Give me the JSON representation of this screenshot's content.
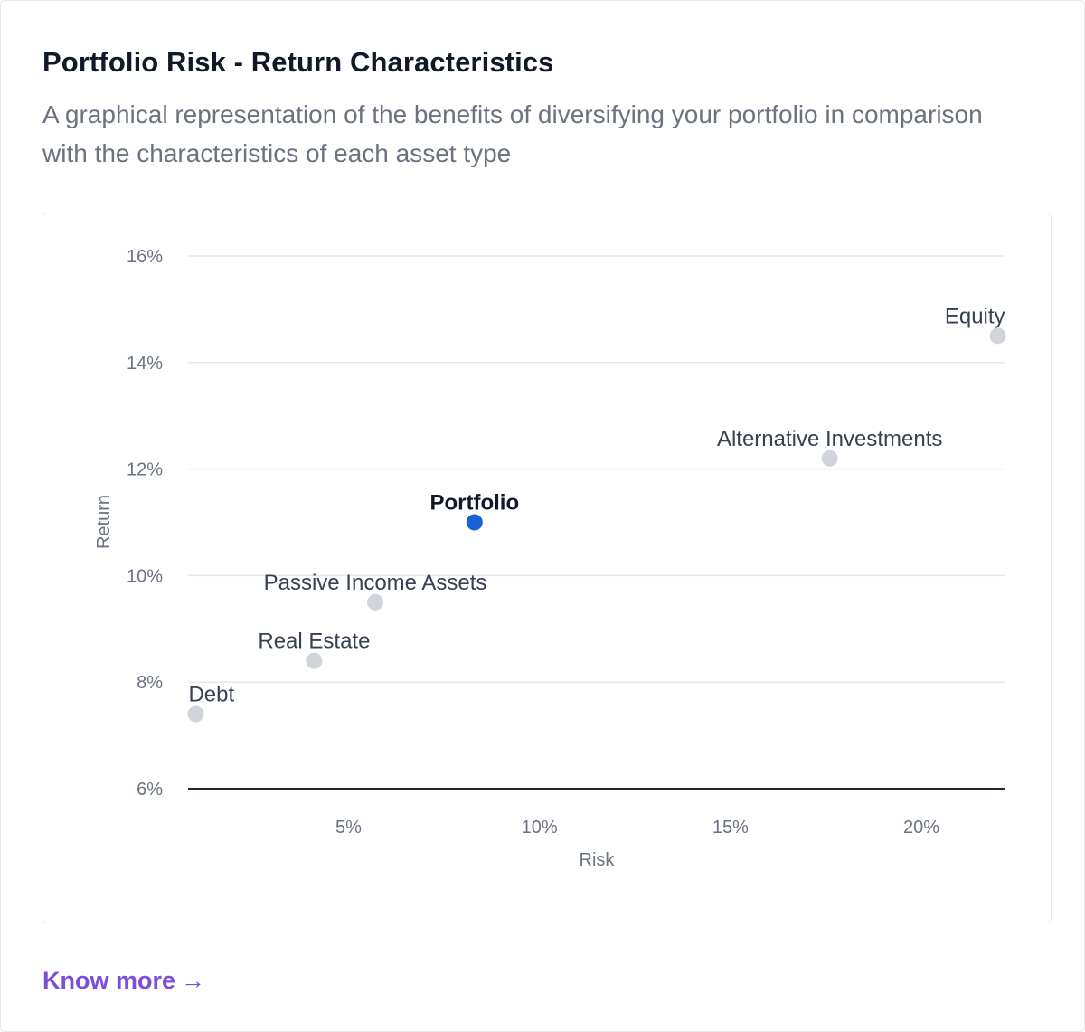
{
  "card": {
    "title": "Portfolio Risk - Return Characteristics",
    "subtitle": "A graphical representation of the benefits of diversifying your portfolio in comparison with the characteristics of each asset type",
    "link_label": "Know more",
    "link_arrow": "→"
  },
  "colors": {
    "highlight_point": "#1a5fd6",
    "point": "#d1d5db",
    "gridline": "#e5e7eb",
    "baseline": "#1f2937",
    "link": "#7c4ddb"
  },
  "chart_data": {
    "type": "scatter",
    "title": "",
    "xlabel": "Risk",
    "ylabel": "Return",
    "xlim": [
      0.8,
      22.2
    ],
    "ylim": [
      6,
      16
    ],
    "x_ticks": [
      5,
      10,
      15,
      20
    ],
    "x_tick_labels": [
      "5%",
      "10%",
      "15%",
      "20%"
    ],
    "y_ticks": [
      6,
      8,
      10,
      12,
      14,
      16
    ],
    "y_tick_labels": [
      "6%",
      "8%",
      "10%",
      "12%",
      "14%",
      "16%"
    ],
    "grid": true,
    "points": [
      {
        "label": "Debt",
        "x": 1.0,
        "y": 7.4,
        "highlight": false
      },
      {
        "label": "Real Estate",
        "x": 4.1,
        "y": 8.4,
        "highlight": false
      },
      {
        "label": "Passive Income Assets",
        "x": 5.7,
        "y": 9.5,
        "highlight": false
      },
      {
        "label": "Portfolio",
        "x": 8.3,
        "y": 11.0,
        "highlight": true
      },
      {
        "label": "Alternative Investments",
        "x": 17.6,
        "y": 12.2,
        "highlight": false
      },
      {
        "label": "Equity",
        "x": 22.0,
        "y": 14.5,
        "highlight": false
      }
    ]
  }
}
